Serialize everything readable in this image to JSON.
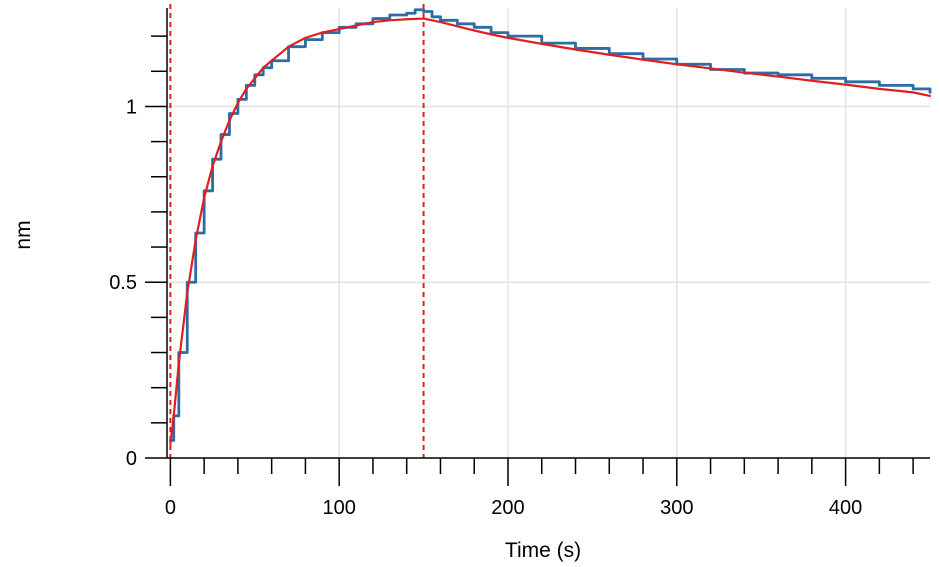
{
  "chart_data": {
    "type": "line",
    "title": "",
    "xlabel": "Time (s)",
    "ylabel": "nm",
    "xlim": [
      -2,
      450
    ],
    "ylim": [
      0,
      1.28
    ],
    "grid": true,
    "x_major_ticks": [
      0,
      100,
      200,
      300,
      400
    ],
    "x_tick_labels": [
      "0",
      "100",
      "200",
      "300",
      "400"
    ],
    "x_minor_step": 20,
    "y_major_ticks": [
      0,
      0.5,
      1
    ],
    "y_tick_labels": [
      "0",
      "0.5",
      "1"
    ],
    "y_minor_step": 0.1,
    "markers": [
      {
        "type": "vertical-dashed",
        "x": 0,
        "color": "#e02020"
      },
      {
        "type": "vertical-dashed",
        "x": 150,
        "color": "#e02020"
      }
    ],
    "series": [
      {
        "color": "#2e6ca4",
        "style": "stepped",
        "x": [
          0,
          2,
          5,
          10,
          15,
          20,
          25,
          30,
          35,
          40,
          45,
          50,
          55,
          60,
          70,
          80,
          90,
          100,
          110,
          120,
          130,
          140,
          145,
          150,
          155,
          160,
          170,
          180,
          190,
          200,
          220,
          240,
          260,
          280,
          300,
          320,
          340,
          360,
          380,
          400,
          420,
          440,
          450
        ],
        "y": [
          0.05,
          0.12,
          0.3,
          0.5,
          0.64,
          0.76,
          0.85,
          0.92,
          0.98,
          1.02,
          1.06,
          1.09,
          1.11,
          1.13,
          1.17,
          1.19,
          1.21,
          1.225,
          1.235,
          1.25,
          1.26,
          1.265,
          1.275,
          1.27,
          1.255,
          1.245,
          1.235,
          1.225,
          1.21,
          1.2,
          1.18,
          1.165,
          1.15,
          1.135,
          1.12,
          1.105,
          1.095,
          1.09,
          1.08,
          1.07,
          1.06,
          1.05,
          1.04
        ]
      },
      {
        "color": "#e02020",
        "style": "smooth",
        "x": [
          0,
          2,
          5,
          10,
          15,
          20,
          25,
          30,
          35,
          40,
          45,
          50,
          55,
          60,
          70,
          80,
          90,
          100,
          110,
          120,
          130,
          140,
          150,
          160,
          170,
          180,
          190,
          200,
          220,
          240,
          260,
          280,
          300,
          320,
          340,
          360,
          380,
          400,
          420,
          440,
          450
        ],
        "y": [
          0.04,
          0.12,
          0.27,
          0.47,
          0.62,
          0.74,
          0.83,
          0.9,
          0.96,
          1.01,
          1.05,
          1.08,
          1.11,
          1.13,
          1.17,
          1.195,
          1.21,
          1.22,
          1.23,
          1.24,
          1.245,
          1.248,
          1.25,
          1.24,
          1.228,
          1.216,
          1.205,
          1.195,
          1.178,
          1.162,
          1.147,
          1.133,
          1.12,
          1.108,
          1.096,
          1.085,
          1.073,
          1.062,
          1.05,
          1.04,
          1.03
        ]
      }
    ]
  }
}
